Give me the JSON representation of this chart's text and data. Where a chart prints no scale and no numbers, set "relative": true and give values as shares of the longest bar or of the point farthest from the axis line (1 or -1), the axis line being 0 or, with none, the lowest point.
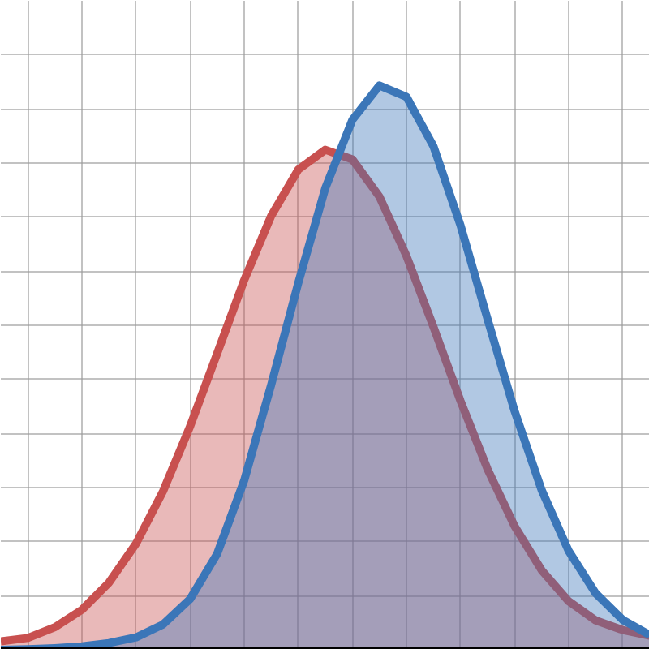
{
  "chart_data": {
    "type": "area",
    "relative": true,
    "categories": [
      null,
      null,
      null,
      null,
      null,
      null,
      null,
      null,
      null,
      null,
      null,
      null,
      null,
      null,
      null,
      null,
      null,
      null,
      null,
      null,
      null,
      null,
      null,
      null,
      null
    ],
    "series": [
      {
        "color": "#c8504f",
        "values": [
          0.015,
          0.021,
          0.04,
          0.071,
          0.119,
          0.188,
          0.281,
          0.396,
          0.525,
          0.655,
          0.769,
          0.851,
          0.886,
          0.869,
          0.803,
          0.698,
          0.572,
          0.441,
          0.32,
          0.219,
          0.141,
          0.086,
          0.052,
          0.035,
          0.025
        ]
      },
      {
        "color": "#3b76b8",
        "values": [
          0.0,
          0.001,
          0.003,
          0.006,
          0.012,
          0.022,
          0.045,
          0.09,
          0.17,
          0.3,
          0.47,
          0.65,
          0.818,
          0.939,
          1.0,
          0.98,
          0.892,
          0.752,
          0.586,
          0.423,
          0.283,
          0.175,
          0.1,
          0.053,
          0.026
        ]
      }
    ],
    "grid": true,
    "marker": "none",
    "line_style": "solid"
  }
}
